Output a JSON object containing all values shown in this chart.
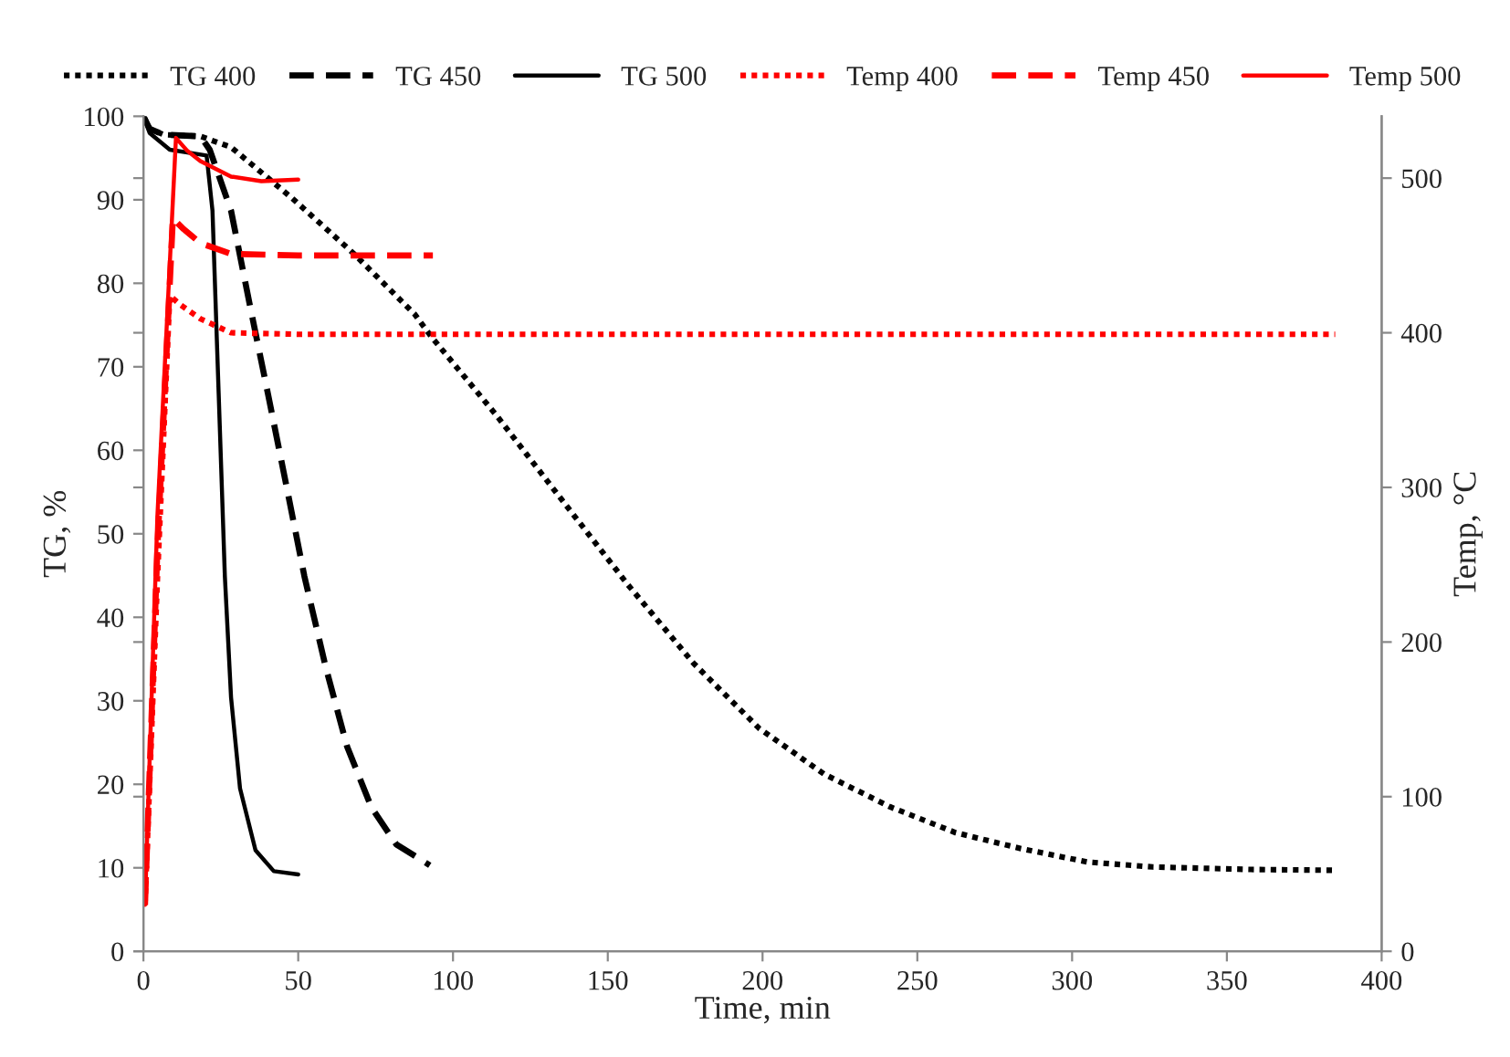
{
  "chart_data": {
    "type": "line",
    "xlabel": "Time, min",
    "ylabel": "TG, %",
    "y2label": "Temp, °C",
    "xlim": [
      0,
      400
    ],
    "xticks": [
      0,
      50,
      100,
      150,
      200,
      250,
      300,
      350,
      400
    ],
    "ylim": [
      0,
      100
    ],
    "yticks": [
      0,
      10,
      20,
      30,
      40,
      50,
      60,
      70,
      80,
      90,
      100
    ],
    "y2lim": [
      0,
      540
    ],
    "y2ticks": [
      0,
      100,
      200,
      300,
      400,
      500
    ],
    "legend": "top",
    "grid": false,
    "series": [
      {
        "name": "TG 400",
        "color": "#000000",
        "line_style": "dotted",
        "x": [
          0,
          2,
          6.5,
          18.4,
          28.3,
          48,
          67.8,
          87.6,
          93,
          114,
          135.3,
          156.5,
          177.7,
          198.9,
          220,
          241.2,
          262.4,
          283.5,
          304.8,
          326,
          357.7,
          385.3
        ],
        "values": [
          100,
          98.5,
          97.8,
          97.6,
          96.3,
          90.2,
          83.6,
          76.3,
          73.6,
          64.2,
          54,
          43.9,
          34.5,
          26.7,
          21.2,
          17.3,
          14.2,
          12.3,
          10.7,
          10.1,
          9.8,
          9.7
        ]
      },
      {
        "name": "TG 450",
        "color": "#000000",
        "line_style": "dashed",
        "x": [
          0,
          2,
          6.5,
          18.4,
          21.4,
          28.3,
          34.2,
          40.2,
          46.1,
          52,
          58.9,
          65.8,
          73.7,
          81.7,
          92.5
        ],
        "values": [
          100,
          98.5,
          97.8,
          97.6,
          96,
          88.7,
          77.7,
          66.8,
          55.9,
          44.9,
          34,
          24.5,
          17.2,
          12.8,
          10.3
        ]
      },
      {
        "name": "TG 500",
        "color": "#000000",
        "line_style": "solid",
        "x": [
          0,
          2,
          8.5,
          20.4,
          22.3,
          24.3,
          26.3,
          28.3,
          31.2,
          36.2,
          42.1,
          50
        ],
        "values": [
          100,
          98,
          96,
          95.3,
          88.7,
          66.8,
          44.9,
          30.4,
          19.5,
          12.1,
          9.6,
          9.2
        ]
      },
      {
        "name": "Temp 400",
        "color": "#ff0000",
        "line_style": "dotted",
        "axis": "y2",
        "x": [
          0.5,
          4.5,
          8.5,
          12,
          18.4,
          28.3,
          50,
          100,
          200,
          300,
          385
        ],
        "values": [
          30,
          240,
          424,
          418,
          409,
          400,
          399,
          399,
          399,
          399,
          399
        ]
      },
      {
        "name": "Temp 450",
        "color": "#ff0000",
        "line_style": "dashed",
        "axis": "y2",
        "x": [
          0.5,
          4.5,
          9.5,
          13,
          18.4,
          28.3,
          50,
          93.5
        ],
        "values": [
          30,
          260,
          474,
          467,
          458,
          451,
          450,
          450
        ]
      },
      {
        "name": "Temp 500",
        "color": "#ff0000",
        "line_style": "solid",
        "axis": "y2",
        "x": [
          0.5,
          4.5,
          10.5,
          14,
          18.4,
          28.3,
          38.1,
          50
        ],
        "values": [
          30,
          281,
          526,
          518,
          511,
          501,
          498,
          499
        ]
      }
    ]
  }
}
